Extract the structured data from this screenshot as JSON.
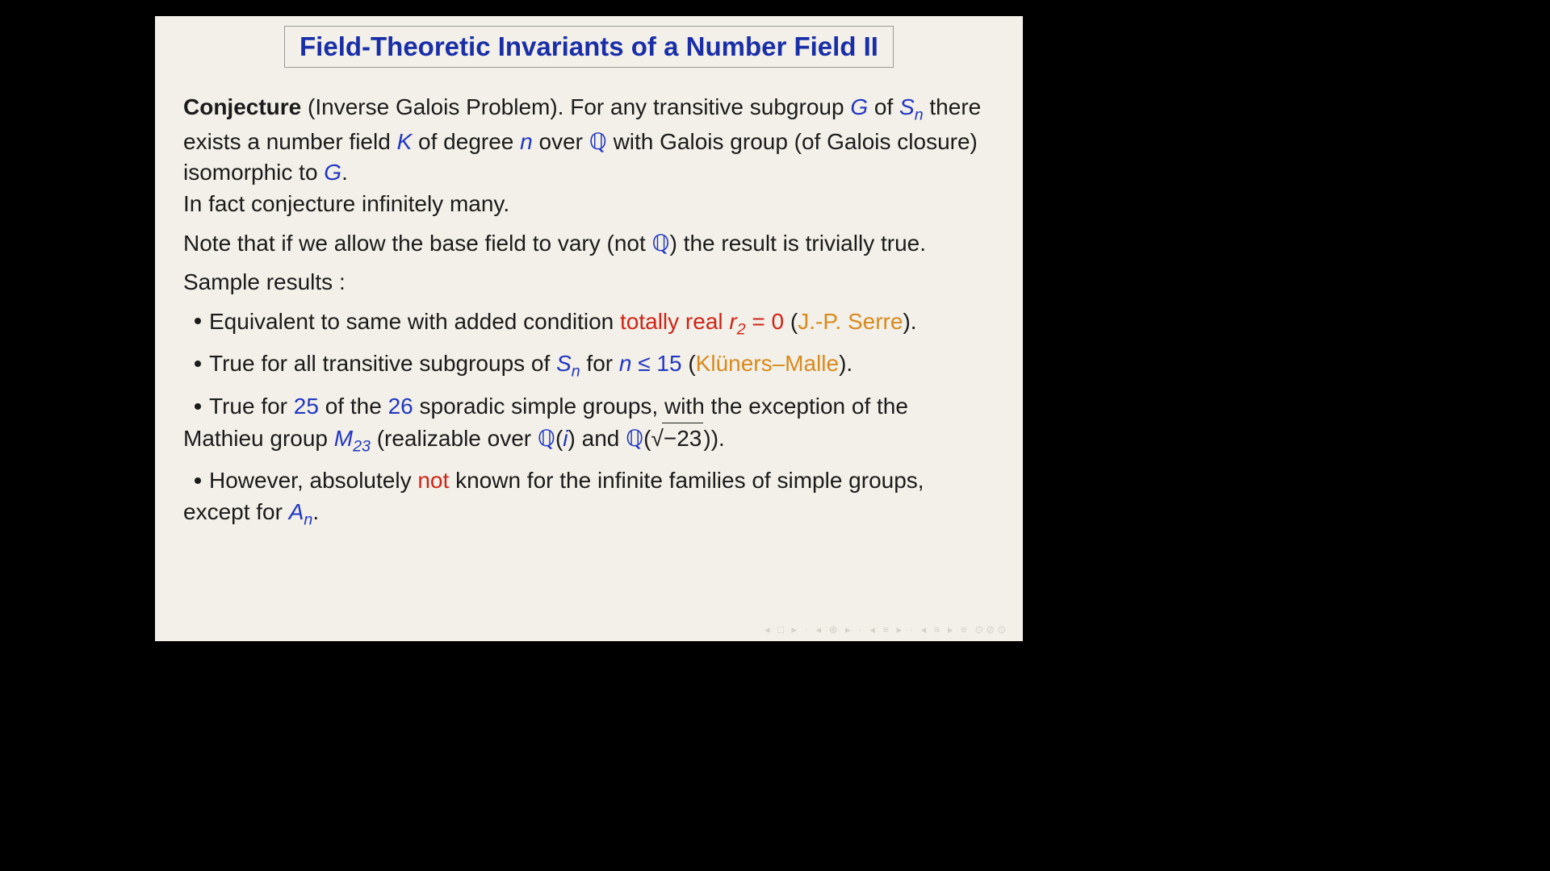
{
  "title": "Field-Theoretic Invariants of a Number Field II",
  "colors": {
    "background_page": "#000000",
    "background_slide": "#f2f0e8",
    "title_text": "#1a2ea8",
    "title_shadow": "#1a2ea8",
    "body_text": "#1b1b1b",
    "math_blue": "#2236c2",
    "highlight_red": "#d02418",
    "author_orange": "#d88a1f"
  },
  "typography": {
    "title_fontsize_pt": 33,
    "body_fontsize_pt": 28,
    "title_weight": "bold"
  },
  "conj": {
    "label": "Conjecture",
    "name": " (Inverse Galois Problem). ",
    "t1": "For any transitive subgroup ",
    "G": "G",
    "t2": " of ",
    "Sn": "S",
    "Sn_sub": "n",
    "t3": " there exists a number field ",
    "K": "K",
    "t4": " of degree ",
    "n": "n",
    "t5": " over ",
    "Q": "ℚ",
    "t6": " with Galois group (of Galois closure) isomorphic to ",
    "G2": "G",
    "t7": "."
  },
  "line2": "In fact conjecture infinitely many.",
  "note": {
    "t1": "Note that if we allow the base field to vary (not ",
    "Q": "ℚ",
    "t2": ") the result is trivially true."
  },
  "sample_label": "Sample results :",
  "b1": {
    "t1": "Equivalent to same with added condition ",
    "red": "totally real ",
    "r2": "r",
    "r2_sub": "2",
    "eq0": " = 0",
    "t2": " (",
    "serre": "J.-P. Serre",
    "t3": ")."
  },
  "b2": {
    "t1": "True for all transitive subgroups of ",
    "Sn": "S",
    "Sn_sub": "n",
    "t2": " for ",
    "n": "n",
    "le": " ≤ ",
    "num": "15",
    "t3": " (",
    "km": "Klüners–Malle",
    "t4": ")."
  },
  "b3": {
    "t1": "True for ",
    "n25": "25",
    "t2": " of the ",
    "n26": "26",
    "t3": " sporadic simple groups, with the exception of the Mathieu group ",
    "M": "M",
    "M_sub": "23",
    "t4": " (realizable over ",
    "Q1": "ℚ",
    "t5": "(",
    "i": "i",
    "t6": ") and ",
    "Q2": "ℚ",
    "t7": "(√",
    "neg23": "−23",
    "t8": "))."
  },
  "b4": {
    "t1": "However, absolutely ",
    "not": "not",
    "t2": " known for the infinite families of simple groups, except for ",
    "An": "A",
    "An_sub": "n",
    "t3": "."
  },
  "footer": "◂ □ ▸ · ◂ ⊕ ▸ · ◂ ≡ ▸ · ◂ ≡ ▸   ≡   ⊙⊘⊙"
}
